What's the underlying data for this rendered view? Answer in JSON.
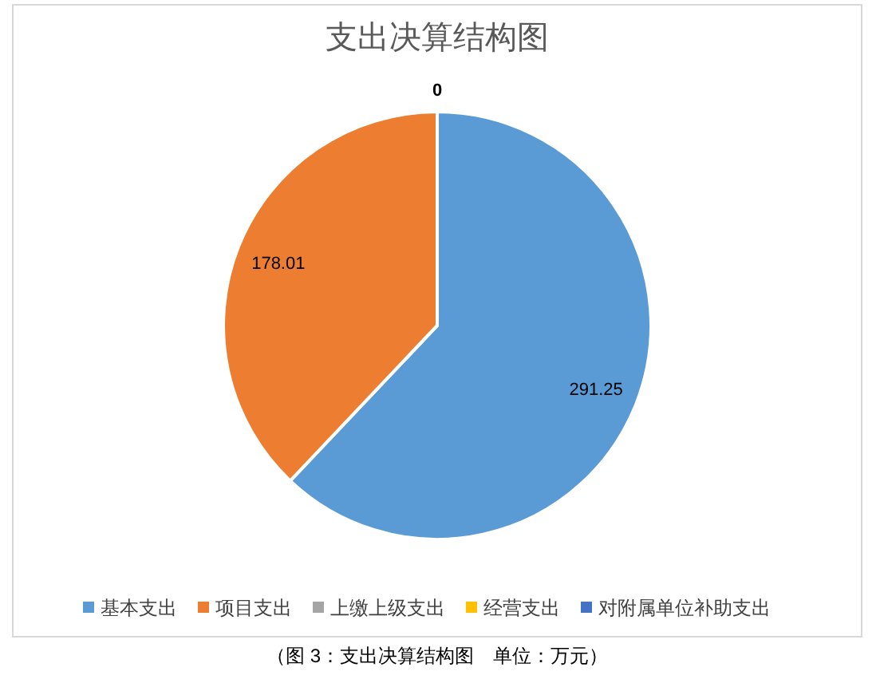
{
  "chart_data": {
    "type": "pie",
    "title": "支出决算结构图",
    "categories": [
      "基本支出",
      "项目支出",
      "上缴上级支出",
      "经营支出",
      "对附属单位补助支出"
    ],
    "values": [
      291.25,
      178.01,
      0,
      0,
      0
    ],
    "colors": [
      "#5b9bd5",
      "#ed7d31",
      "#a5a5a5",
      "#ffc000",
      "#4472c4"
    ],
    "value_labels": [
      "291.25",
      "178.01",
      "0",
      null,
      null
    ],
    "legend": "bottom",
    "annotations": [
      "（图 3：支出决算结构图　单位：万元）"
    ]
  }
}
